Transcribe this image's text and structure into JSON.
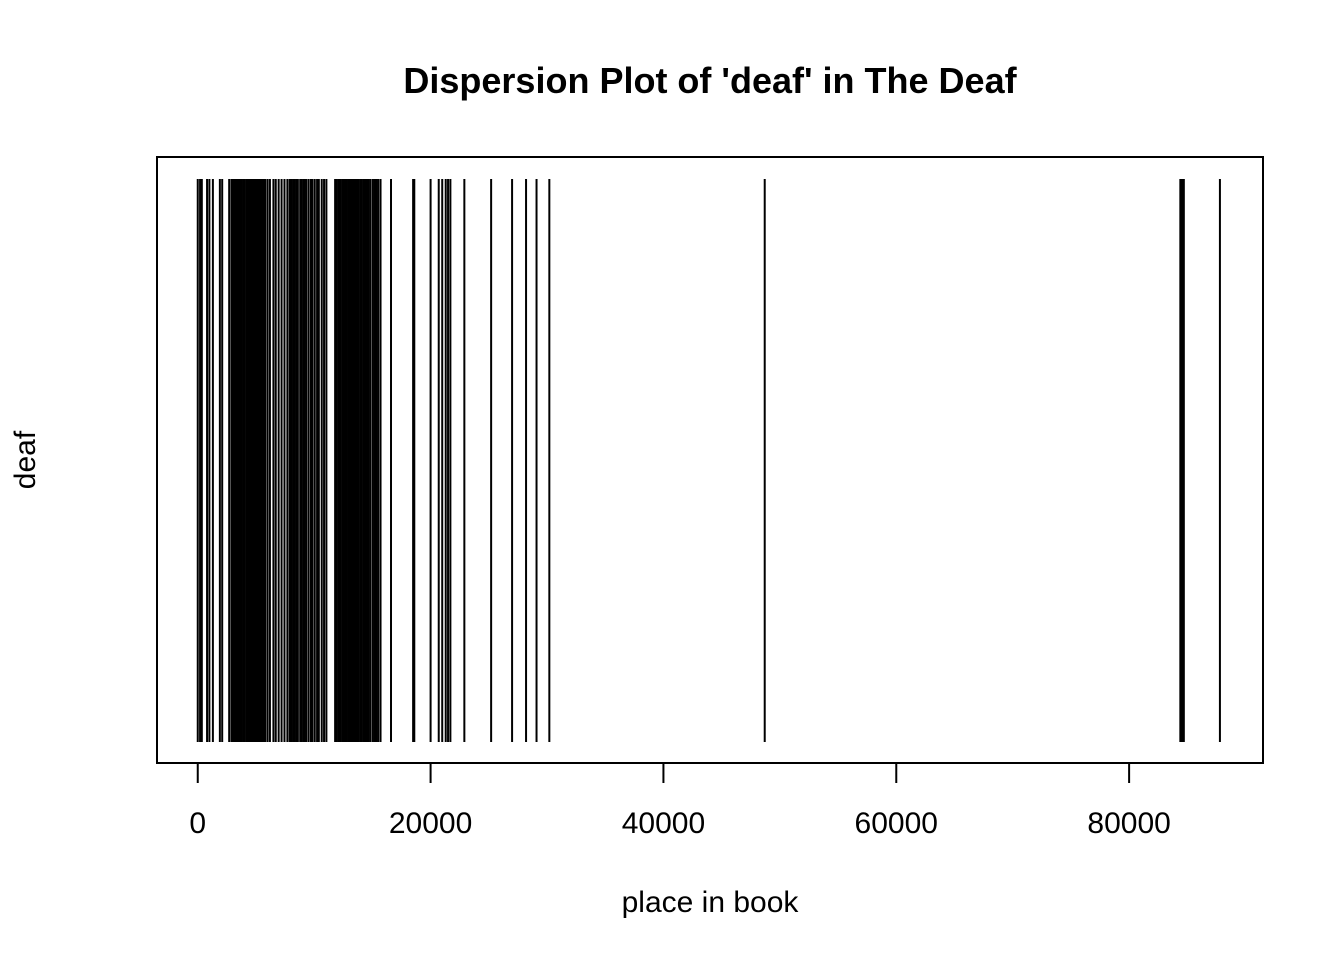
{
  "chart_data": {
    "type": "dispersion",
    "title": "Dispersion Plot of 'deaf' in The Deaf",
    "xlabel": "place in book",
    "ylabel": "deaf",
    "xlim": [
      -3500,
      91500
    ],
    "x_ticks": [
      0,
      20000,
      40000,
      60000,
      80000
    ],
    "x_tick_labels": [
      "0",
      "20000",
      "40000",
      "60000",
      "80000"
    ],
    "grid": false,
    "series": [
      {
        "name": "deaf",
        "x": [
          0,
          200,
          350,
          800,
          1000,
          1300,
          1900,
          2100,
          2700,
          2900,
          3050,
          3200,
          3300,
          3450,
          3550,
          3700,
          3800,
          3950,
          4050,
          4200,
          4300,
          4400,
          4500,
          4650,
          4750,
          4850,
          4950,
          5050,
          5200,
          5300,
          5400,
          5550,
          5650,
          5800,
          6000,
          6200,
          6500,
          6700,
          6950,
          7200,
          7450,
          7700,
          7900,
          8050,
          8200,
          8350,
          8500,
          8600,
          8800,
          8900,
          9050,
          9150,
          9300,
          9500,
          9700,
          9850,
          10050,
          10250,
          10400,
          10650,
          10850,
          11050,
          11800,
          11950,
          12100,
          12250,
          12400,
          12550,
          12650,
          12800,
          12950,
          13050,
          13200,
          13300,
          13450,
          13550,
          13700,
          13800,
          13950,
          14050,
          14200,
          14300,
          14450,
          14550,
          14700,
          14850,
          15050,
          15200,
          15350,
          15500,
          15700,
          16600,
          18500,
          18600,
          20000,
          20700,
          21000,
          21300,
          21500,
          21700,
          22900,
          25200,
          27000,
          28200,
          29100,
          30200,
          48700,
          84400,
          84500,
          84600,
          84700,
          87800
        ]
      }
    ]
  }
}
